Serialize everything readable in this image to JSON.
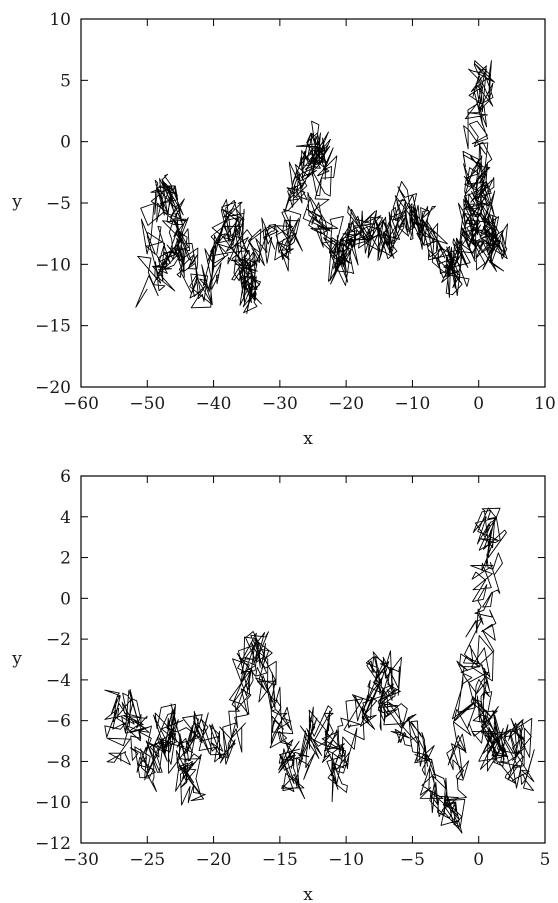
{
  "chart_data": [
    {
      "type": "line",
      "xlabel": "x",
      "ylabel": "y",
      "xlim": [
        -60,
        10
      ],
      "ylim": [
        -20,
        10
      ],
      "xticks": [
        -60,
        -50,
        -40,
        -30,
        -20,
        -10,
        0,
        10
      ],
      "yticks": [
        -20,
        -15,
        -10,
        -5,
        0,
        5,
        10
      ],
      "grid": false,
      "line_color": "#000000",
      "path": {
        "start": [
          -50,
          -12
        ],
        "seed": 12345,
        "steps_per_segment": 24,
        "waypoints": [
          [
            -50,
            -12
          ],
          [
            -49,
            -5
          ],
          [
            -47,
            -4
          ],
          [
            -46,
            -6
          ],
          [
            -48,
            -11
          ],
          [
            -46,
            -9
          ],
          [
            -45,
            -7
          ],
          [
            -44,
            -10
          ],
          [
            -42,
            -12
          ],
          [
            -40,
            -9
          ],
          [
            -38,
            -7
          ],
          [
            -37,
            -6
          ],
          [
            -36,
            -9
          ],
          [
            -34,
            -13
          ],
          [
            -35,
            -11
          ],
          [
            -36,
            -10
          ],
          [
            -32,
            -8
          ],
          [
            -29,
            -9
          ],
          [
            -28,
            -6
          ],
          [
            -27,
            -2
          ],
          [
            -25,
            -1
          ],
          [
            -24,
            0
          ],
          [
            -23,
            -2
          ],
          [
            -25,
            -6
          ],
          [
            -22,
            -8
          ],
          [
            -21,
            -10
          ],
          [
            -20,
            -9
          ],
          [
            -19,
            -7
          ],
          [
            -17,
            -7
          ],
          [
            -15,
            -8
          ],
          [
            -14,
            -8
          ],
          [
            -12,
            -7
          ],
          [
            -11,
            -5
          ],
          [
            -9,
            -7
          ],
          [
            -8,
            -7
          ],
          [
            -6,
            -9
          ],
          [
            -4,
            -10
          ],
          [
            -3,
            -11
          ],
          [
            -2,
            -8
          ],
          [
            -1,
            -5
          ],
          [
            0,
            -3
          ],
          [
            1,
            -5
          ],
          [
            2,
            -9
          ],
          [
            0,
            -9
          ],
          [
            -1,
            -1
          ],
          [
            0,
            4
          ],
          [
            1,
            5
          ],
          [
            0,
            -2
          ],
          [
            -1,
            -8
          ],
          [
            2,
            -7
          ],
          [
            3,
            -9
          ]
        ]
      }
    },
    {
      "type": "line",
      "xlabel": "x",
      "ylabel": "y",
      "xlim": [
        -30,
        5
      ],
      "ylim": [
        -12,
        6
      ],
      "xticks": [
        -30,
        -25,
        -20,
        -15,
        -10,
        -5,
        0,
        5
      ],
      "yticks": [
        -12,
        -10,
        -8,
        -6,
        -4,
        -2,
        0,
        2,
        4,
        6
      ],
      "grid": false,
      "line_color": "#000000",
      "path": {
        "start": [
          -27,
          -8
        ],
        "seed": 98765,
        "steps_per_segment": 24,
        "waypoints": [
          [
            -27,
            -8
          ],
          [
            -27.5,
            -5.5
          ],
          [
            -26,
            -5.5
          ],
          [
            -25.5,
            -7.5
          ],
          [
            -25,
            -8.5
          ],
          [
            -24,
            -7
          ],
          [
            -23.5,
            -6
          ],
          [
            -22.5,
            -8
          ],
          [
            -21.5,
            -9.5
          ],
          [
            -22,
            -7
          ],
          [
            -21,
            -6.5
          ],
          [
            -19,
            -7.5
          ],
          [
            -18,
            -5
          ],
          [
            -17.5,
            -2.5
          ],
          [
            -16.5,
            -2.8
          ],
          [
            -16,
            -4
          ],
          [
            -15,
            -6
          ],
          [
            -14.5,
            -7.5
          ],
          [
            -14,
            -9
          ],
          [
            -13,
            -7.5
          ],
          [
            -12,
            -6
          ],
          [
            -11,
            -7.5
          ],
          [
            -10.5,
            -9
          ],
          [
            -9.5,
            -6
          ],
          [
            -8,
            -5
          ],
          [
            -7.5,
            -3.2
          ],
          [
            -6.5,
            -4
          ],
          [
            -7,
            -5.5
          ],
          [
            -5.5,
            -6.5
          ],
          [
            -4,
            -8
          ],
          [
            -3,
            -9.5
          ],
          [
            -2,
            -11
          ],
          [
            -1.5,
            -8
          ],
          [
            -1,
            -4
          ],
          [
            0,
            -1
          ],
          [
            0.5,
            3.5
          ],
          [
            1.2,
            3.5
          ],
          [
            0.5,
            -2
          ],
          [
            0,
            -5
          ],
          [
            1,
            -6.5
          ],
          [
            2,
            -7.5
          ],
          [
            3,
            -6.5
          ],
          [
            3.5,
            -8.5
          ],
          [
            1,
            -7.5
          ],
          [
            0,
            -5.5
          ]
        ]
      }
    }
  ]
}
